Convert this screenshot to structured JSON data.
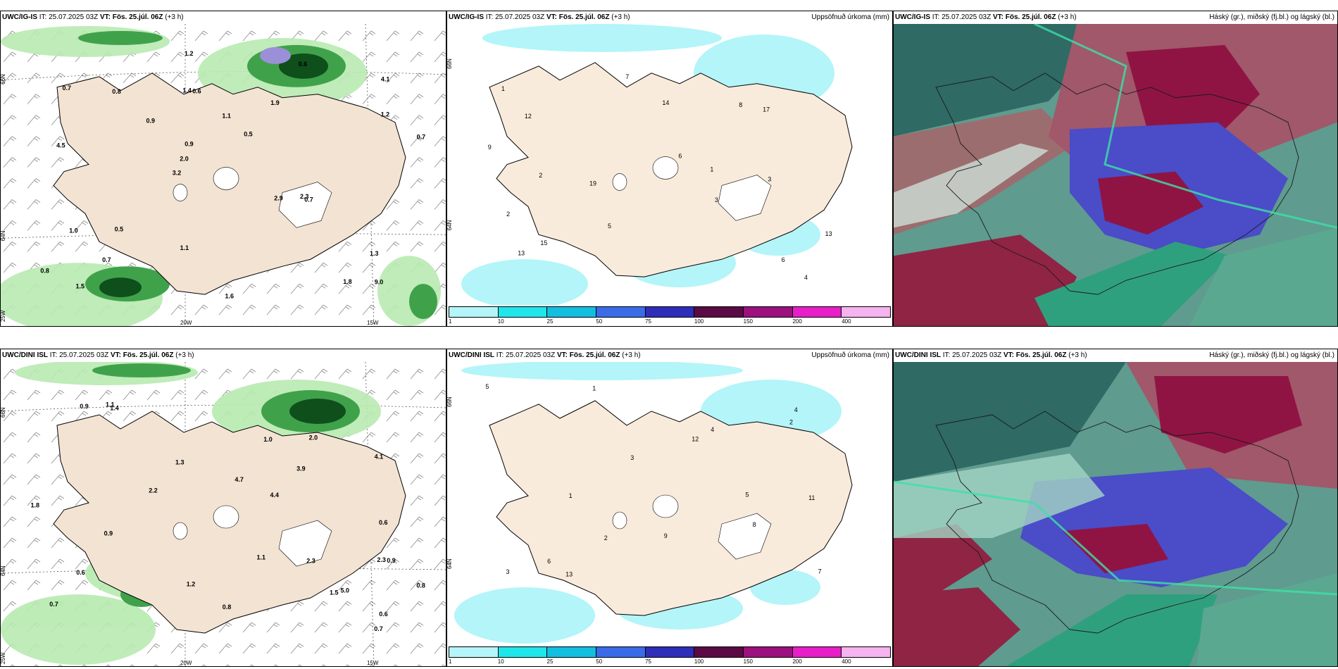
{
  "panels": [
    {
      "id": "p1",
      "model": "UWC/IG-IS",
      "it": "IT: 25.07.2025 03Z",
      "vt_label": "VT:",
      "vt": "Fös. 25.júl. 06Z",
      "lead": "(+3 h)",
      "right": ""
    },
    {
      "id": "p2",
      "model": "UWC/IG-IS",
      "it": "IT: 25.07.2025 03Z",
      "vt_label": "VT:",
      "vt": "Fös. 25.júl. 06Z",
      "lead": "(+3 h)",
      "right": "Uppsöfnuð úrkoma (mm)"
    },
    {
      "id": "p3",
      "model": "UWC/IG-IS",
      "it": "IT: 25.07.2025 03Z",
      "vt_label": "VT:",
      "vt": "Fös. 25.júl. 06Z",
      "lead": "(+3 h)",
      "right": "Háský (gr.), miðský (fj.bl.) og lágský (bl.)"
    },
    {
      "id": "p4",
      "model": "UWC/DINI ISL",
      "it": "IT: 25.07.2025 03Z",
      "vt_label": "VT:",
      "vt": "Fös. 25.júl. 06Z",
      "lead": "(+3 h)",
      "right": ""
    },
    {
      "id": "p5",
      "model": "UWC/DINI ISL",
      "it": "IT: 25.07.2025 03Z",
      "vt_label": "VT:",
      "vt": "Fös. 25.júl. 06Z",
      "lead": "(+3 h)",
      "right": "Uppsöfnuð úrkoma (mm)"
    },
    {
      "id": "p6",
      "model": "UWC/DINI ISL",
      "it": "IT: 25.07.2025 03Z",
      "vt_label": "VT:",
      "vt": "Fös. 25.júl. 06Z",
      "lead": "(+3 h)",
      "right": "Háský (gr.), miðský (fj.bl.) og lágský (bl.)"
    }
  ],
  "coords": {
    "lat_66": "66N",
    "lat_64": "64N",
    "lon_25": "25W",
    "lon_20": "20W",
    "lon_15": "15W"
  },
  "colorbar": {
    "ticks": [
      "1",
      "10",
      "25",
      "50",
      "75",
      "100",
      "150",
      "200",
      "400"
    ],
    "colors": [
      "#b3f5f8",
      "#1ee6ea",
      "#12bfe0",
      "#3a6be8",
      "#2e2eb8",
      "#5a0a44",
      "#9c1080",
      "#e81ec8",
      "#f5b3ef"
    ]
  },
  "precip_labels_p1": [
    "9.0",
    "4.5",
    "4.1",
    "3.2",
    "1.9",
    "1.5",
    "1.4",
    "1.1",
    "1.0",
    "0.9",
    "0.8",
    "0.7",
    "0.6",
    "0.5",
    "0.7",
    "0.7",
    "1.2",
    "0.7",
    "2.9",
    "1.2",
    "2.0",
    "1.1",
    "0.9",
    "0.8",
    "0.6",
    "0.5",
    "1.8",
    "1.3",
    "2.3",
    "1.6"
  ],
  "accum_labels_p2": [
    "4",
    "2",
    "3",
    "1",
    "13",
    "12",
    "15",
    "19",
    "17",
    "14",
    "8",
    "6",
    "5",
    "7",
    "1",
    "2",
    "3",
    "6",
    "9",
    "13"
  ],
  "precip_labels_p4": [
    "0.6",
    "4.4",
    "2.3",
    "0.8",
    "1.0",
    "5.0",
    "4.7",
    "3.9",
    "0.9",
    "0.7",
    "1.4",
    "1.1",
    "0.6",
    "0.8",
    "0.9",
    "1.2",
    "0.7",
    "4.1",
    "0.6",
    "2.3",
    "0.9",
    "2.0",
    "2.2",
    "1.3",
    "1.1",
    "1.8",
    "1.5"
  ],
  "accum_labels_p5": [
    "3",
    "8",
    "4",
    "5",
    "7",
    "2",
    "1",
    "9",
    "12",
    "13",
    "11",
    "6",
    "4",
    "2",
    "5",
    "3",
    "1"
  ]
}
